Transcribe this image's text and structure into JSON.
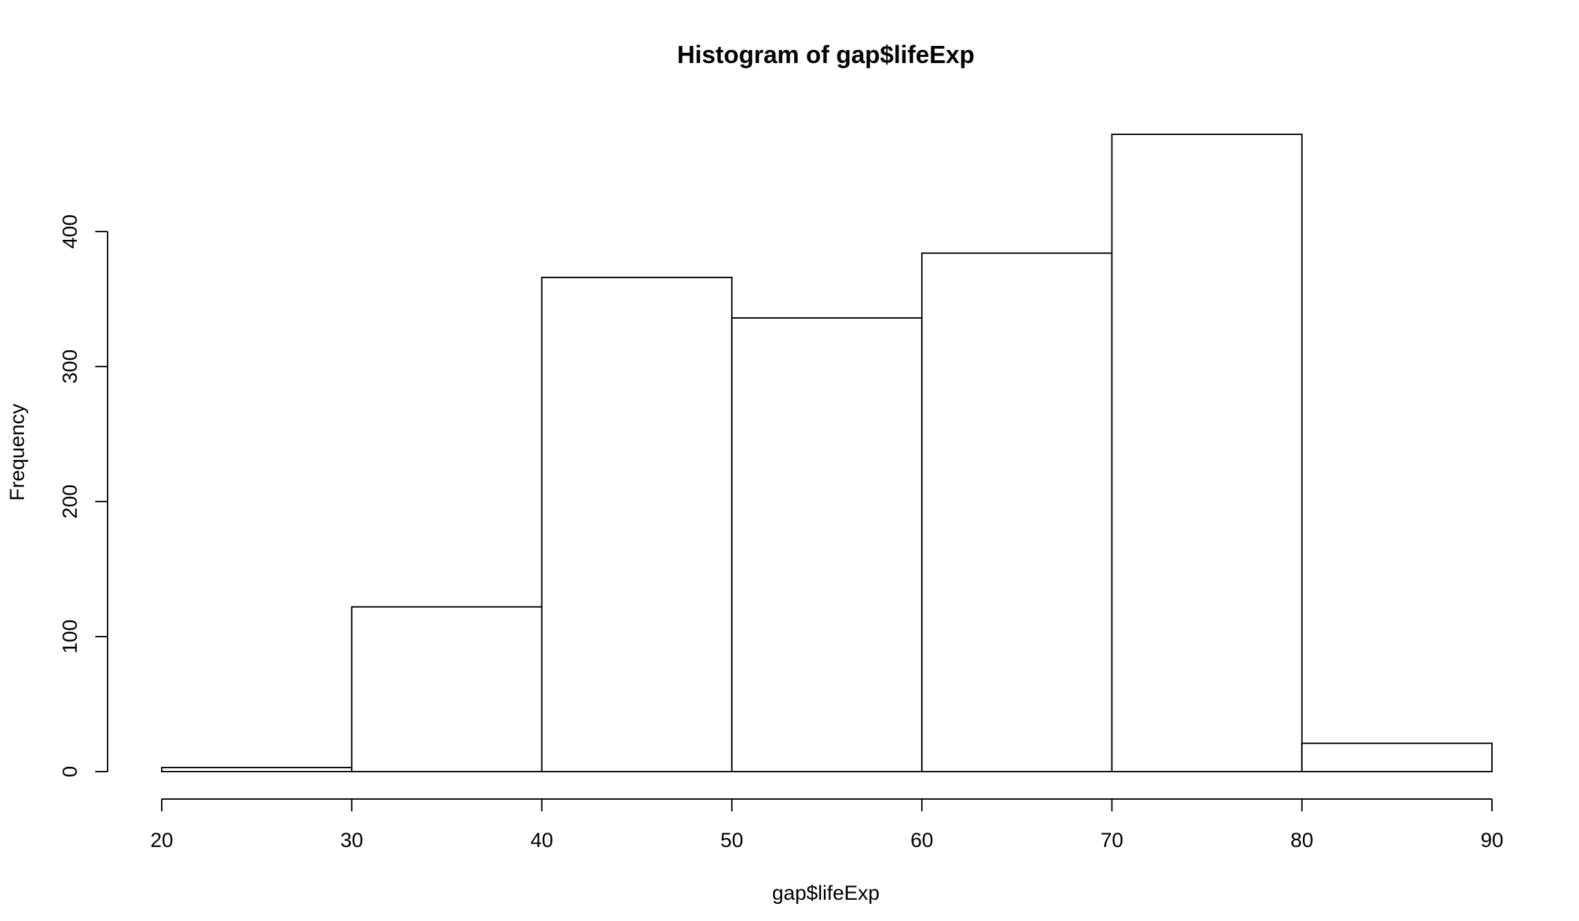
{
  "chart_data": {
    "type": "bar",
    "title": "Histogram of gap$lifeExp",
    "xlabel": "gap$lifeExp",
    "ylabel": "Frequency",
    "bins": [
      {
        "from": 20,
        "to": 30,
        "count": 3
      },
      {
        "from": 30,
        "to": 40,
        "count": 122
      },
      {
        "from": 40,
        "to": 50,
        "count": 366
      },
      {
        "from": 50,
        "to": 60,
        "count": 336
      },
      {
        "from": 60,
        "to": 70,
        "count": 384
      },
      {
        "from": 70,
        "to": 80,
        "count": 472
      },
      {
        "from": 80,
        "to": 90,
        "count": 21
      }
    ],
    "x_ticks": [
      20,
      30,
      40,
      50,
      60,
      70,
      80,
      90
    ],
    "y_ticks": [
      0,
      100,
      200,
      300,
      400
    ],
    "xlim": [
      20,
      90
    ],
    "ylim": [
      0,
      472
    ],
    "grid": false,
    "legend": "none",
    "colors": {
      "bar_fill": "#ffffff",
      "bar_stroke": "#000000"
    }
  }
}
